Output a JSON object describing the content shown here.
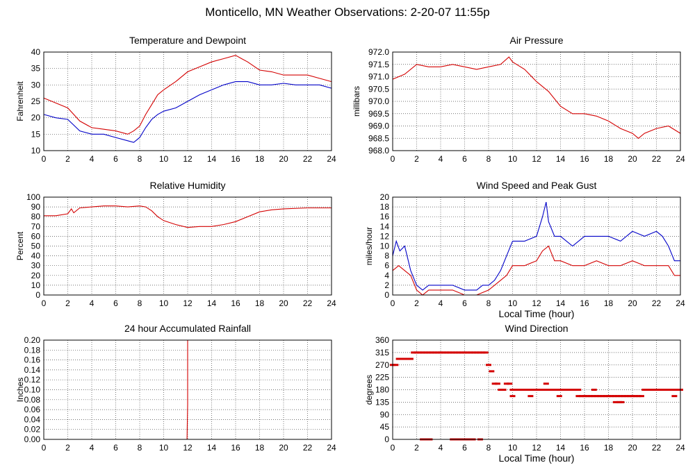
{
  "page_title": "Monticello, MN Weather Observations: 2-20-07 11:55p",
  "chart_data": [
    {
      "id": "temp",
      "type": "line",
      "title": "Temperature and Dewpoint",
      "ylabel": "Fahrenheit",
      "xlabel": "",
      "xlim": [
        0,
        24
      ],
      "ylim": [
        10,
        40
      ],
      "xticks": [
        0,
        2,
        4,
        6,
        8,
        10,
        12,
        14,
        16,
        18,
        20,
        22,
        24
      ],
      "yticks": [
        "10",
        "15",
        "20",
        "25",
        "30",
        "35",
        "40"
      ],
      "grid": true,
      "series": [
        {
          "color": "#d40000",
          "style": "line",
          "x": [
            0,
            1,
            2,
            3,
            4,
            5,
            6,
            7,
            7.5,
            8,
            8.5,
            9,
            9.5,
            10,
            11,
            12,
            13,
            14,
            15,
            16,
            16.5,
            17,
            18,
            19,
            20,
            21,
            22,
            23,
            24
          ],
          "y": [
            26,
            24.5,
            23,
            19,
            17,
            16.5,
            16,
            15,
            16,
            17.5,
            21,
            24,
            27,
            28.5,
            31,
            34,
            35.5,
            37,
            38,
            39,
            38,
            37,
            34.5,
            34,
            33,
            33,
            33,
            32,
            31
          ]
        },
        {
          "color": "#0000c8",
          "style": "line",
          "x": [
            0,
            1,
            2,
            3,
            4,
            5,
            6,
            7,
            7.5,
            8,
            8.5,
            9,
            9.5,
            10,
            11,
            12,
            13,
            14,
            15,
            16,
            17,
            18,
            19,
            20,
            21,
            22,
            23,
            24
          ],
          "y": [
            21,
            20,
            19.5,
            16,
            15,
            15,
            14,
            13,
            12.5,
            14,
            17,
            19.5,
            21,
            22,
            23,
            25,
            27,
            28.5,
            30,
            31,
            31,
            30,
            30,
            30.5,
            30,
            30,
            30,
            29
          ]
        }
      ]
    },
    {
      "id": "pressure",
      "type": "line",
      "title": "Air Pressure",
      "ylabel": "millibars",
      "xlabel": "",
      "xlim": [
        0,
        24
      ],
      "ylim": [
        968.0,
        972.0
      ],
      "xticks": [
        0,
        2,
        4,
        6,
        8,
        10,
        12,
        14,
        16,
        18,
        20,
        22,
        24
      ],
      "yticks": [
        "968.0",
        "968.5",
        "969.0",
        "969.5",
        "970.0",
        "970.5",
        "971.0",
        "971.5",
        "972.0"
      ],
      "grid": true,
      "series": [
        {
          "color": "#d40000",
          "style": "line",
          "x": [
            0,
            1,
            2,
            3,
            4,
            5,
            6,
            7,
            8,
            9,
            9.7,
            10,
            11,
            12,
            13,
            14,
            15,
            16,
            17,
            18,
            19,
            20,
            20.5,
            21,
            22,
            23,
            24
          ],
          "y": [
            970.9,
            971.1,
            971.5,
            971.4,
            971.4,
            971.5,
            971.4,
            971.3,
            971.4,
            971.5,
            971.8,
            971.6,
            971.3,
            970.8,
            970.4,
            969.8,
            969.5,
            969.5,
            969.4,
            969.2,
            968.9,
            968.7,
            968.5,
            968.7,
            968.9,
            969.0,
            968.7
          ]
        }
      ]
    },
    {
      "id": "humidity",
      "type": "line",
      "title": "Relative Humidity",
      "ylabel": "Percent",
      "xlabel": "",
      "xlim": [
        0,
        24
      ],
      "ylim": [
        0,
        100
      ],
      "xticks": [
        0,
        2,
        4,
        6,
        8,
        10,
        12,
        14,
        16,
        18,
        20,
        22,
        24
      ],
      "yticks": [
        "0",
        "10",
        "20",
        "30",
        "40",
        "50",
        "60",
        "70",
        "80",
        "90",
        "100"
      ],
      "grid": true,
      "series": [
        {
          "color": "#d40000",
          "style": "line",
          "x": [
            0,
            1,
            2,
            2.3,
            2.5,
            3,
            4,
            5,
            6,
            7,
            8,
            8.5,
            9,
            9.5,
            10,
            11,
            12,
            13,
            14,
            15,
            16,
            17,
            18,
            19,
            20,
            22,
            24
          ],
          "y": [
            81,
            81,
            83,
            88,
            84,
            89,
            90,
            91,
            91,
            90,
            91,
            90,
            86,
            80,
            76,
            72,
            69,
            70,
            70,
            72,
            75,
            80,
            85,
            87,
            88,
            89,
            89
          ]
        }
      ]
    },
    {
      "id": "wind",
      "type": "line",
      "title": "Wind Speed and Peak Gust",
      "ylabel": "miles/hour",
      "xlabel": "Local Time (hour)",
      "xlim": [
        0,
        24
      ],
      "ylim": [
        0,
        20
      ],
      "xticks": [
        0,
        2,
        4,
        6,
        8,
        10,
        12,
        14,
        16,
        18,
        20,
        22,
        24
      ],
      "yticks": [
        "0",
        "2",
        "4",
        "6",
        "8",
        "10",
        "12",
        "14",
        "16",
        "18",
        "20"
      ],
      "grid": true,
      "series": [
        {
          "color": "#0000c8",
          "style": "line",
          "x": [
            0,
            0.3,
            0.6,
            1,
            1.5,
            2,
            2.5,
            3,
            4,
            5,
            6,
            7,
            7.5,
            8,
            8.5,
            9,
            9.5,
            10,
            11,
            12,
            12.5,
            12.8,
            13,
            13.5,
            14,
            15,
            16,
            17,
            18,
            19,
            20,
            21,
            22,
            22.5,
            23,
            23.5,
            24
          ],
          "y": [
            8,
            11,
            9,
            10,
            5,
            2,
            1,
            2,
            2,
            2,
            1,
            1,
            2,
            2,
            3,
            5,
            8,
            11,
            11,
            12,
            16,
            19,
            15,
            12,
            12,
            10,
            12,
            12,
            12,
            11,
            13,
            12,
            13,
            12,
            10,
            7,
            7
          ]
        },
        {
          "color": "#d40000",
          "style": "line",
          "x": [
            0,
            0.5,
            1,
            1.5,
            2,
            2.5,
            3,
            4,
            5,
            6,
            7,
            8,
            8.5,
            9,
            9.5,
            10,
            11,
            12,
            12.5,
            13,
            13.5,
            14,
            15,
            16,
            17,
            18,
            19,
            20,
            21,
            22,
            23,
            23.5,
            24
          ],
          "y": [
            5,
            6,
            5,
            4,
            1,
            0,
            1,
            1,
            1,
            0,
            0,
            1,
            2,
            3,
            4,
            6,
            6,
            7,
            9,
            10,
            7,
            7,
            6,
            6,
            7,
            6,
            6,
            7,
            6,
            6,
            6,
            4,
            4
          ]
        }
      ]
    },
    {
      "id": "rainfall",
      "type": "line",
      "title": "24 hour Accumulated Rainfall",
      "ylabel": "Inches",
      "xlabel": "",
      "xlim": [
        0,
        24
      ],
      "ylim": [
        0,
        0.2
      ],
      "xticks": [
        0,
        2,
        4,
        6,
        8,
        10,
        12,
        14,
        16,
        18,
        20,
        22,
        24
      ],
      "yticks": [
        "0.00",
        "0.02",
        "0.04",
        "0.06",
        "0.08",
        "0.10",
        "0.12",
        "0.14",
        "0.16",
        "0.18",
        "0.20"
      ],
      "grid": true,
      "series": [
        {
          "color": "#d40000",
          "style": "line",
          "x": [
            0,
            11.95,
            12.0,
            12.0,
            12.05
          ],
          "y": [
            0,
            0,
            0.07,
            0.2,
            0.2
          ]
        }
      ]
    },
    {
      "id": "direction",
      "type": "scatter",
      "title": "Wind Direction",
      "ylabel": "degrees",
      "xlabel": "Local Time (hour)",
      "xlim": [
        0,
        24
      ],
      "ylim": [
        0,
        360
      ],
      "xticks": [
        0,
        2,
        4,
        6,
        8,
        10,
        12,
        14,
        16,
        18,
        20,
        22,
        24
      ],
      "yticks": [
        "0",
        "45",
        "90",
        "135",
        "180",
        "225",
        "270",
        "315",
        "360"
      ],
      "grid": true,
      "series": [
        {
          "color": "#d40000",
          "style": "dots",
          "x": [
            0,
            0.25,
            0.5,
            0.75,
            1,
            1.25,
            1.5,
            1.75,
            2,
            2.25,
            2.5,
            2.75,
            3,
            3.25,
            3.5,
            3.75,
            4,
            4.25,
            4.5,
            4.75,
            5,
            5.25,
            5.5,
            5.75,
            6,
            6.25,
            6.5,
            6.75,
            7,
            7.25,
            7.5,
            7.75,
            8,
            8.25,
            8.5,
            8.75,
            9,
            9.25,
            9.5,
            9.75,
            10,
            10.25,
            10.5,
            10.75,
            11,
            11.25,
            11.5,
            11.75,
            12,
            12.25,
            12.5,
            12.75,
            13,
            13.25,
            13.5,
            13.75,
            14,
            14.25,
            14.5,
            14.75,
            15,
            15.25,
            15.5,
            15.75,
            16,
            16.25,
            16.5,
            16.75,
            17,
            17.25,
            17.5,
            17.75,
            18,
            18.25,
            18.5,
            18.75,
            19,
            19.25,
            19.5,
            19.75,
            20,
            20.25,
            20.5,
            20.75,
            21,
            21.25,
            21.5,
            21.75,
            22,
            22.25,
            22.5,
            22.75,
            23,
            23.25,
            23.5,
            23.75,
            24,
            2.5,
            2.7,
            3.1,
            5.0,
            5.3,
            5.6,
            6.0,
            6.4,
            6.7,
            7.3,
            10.0,
            11.5,
            12.8,
            13.9,
            15.5,
            16.8,
            18.6,
            18.9,
            19.1,
            21.5,
            22.6,
            23.5
          ],
          "y": [
            270,
            270,
            292,
            292,
            292,
            292,
            292,
            315,
            315,
            315,
            315,
            315,
            315,
            315,
            315,
            315,
            315,
            315,
            315,
            315,
            315,
            315,
            315,
            315,
            315,
            315,
            315,
            315,
            315,
            315,
            315,
            315,
            270,
            247,
            202,
            202,
            180,
            180,
            202,
            202,
            180,
            180,
            180,
            180,
            180,
            180,
            180,
            180,
            180,
            180,
            180,
            180,
            180,
            180,
            180,
            180,
            180,
            180,
            180,
            180,
            180,
            180,
            157,
            157,
            157,
            157,
            157,
            157,
            157,
            157,
            157,
            157,
            157,
            157,
            157,
            157,
            157,
            157,
            157,
            157,
            157,
            157,
            157,
            157,
            180,
            180,
            180,
            180,
            180,
            180,
            180,
            180,
            180,
            180,
            180,
            180,
            180,
            0,
            0,
            0,
            0,
            0,
            0,
            0,
            0,
            0,
            0,
            157,
            157,
            202,
            157,
            180,
            180,
            135,
            135,
            135,
            180,
            180,
            157
          ]
        }
      ]
    }
  ]
}
